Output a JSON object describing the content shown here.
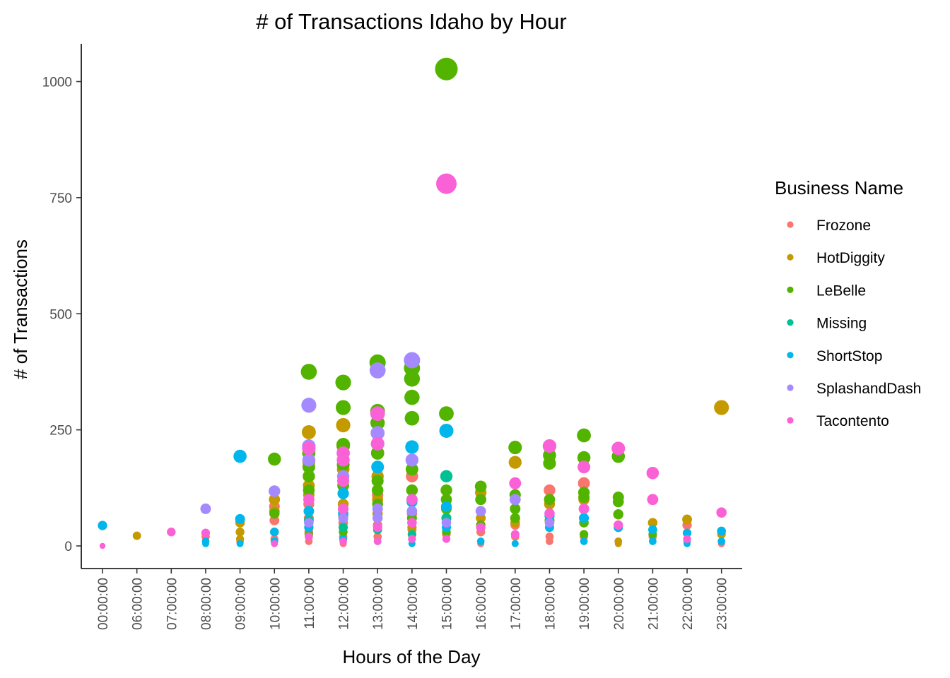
{
  "chart_data": {
    "type": "scatter",
    "title": "# of Transactions Idaho by Hour",
    "xlabel": "Hours of the Day",
    "ylabel": "# of Transactions",
    "categories": [
      "00:00:00",
      "06:00:00",
      "07:00:00",
      "08:00:00",
      "09:00:00",
      "10:00:00",
      "11:00:00",
      "12:00:00",
      "13:00:00",
      "14:00:00",
      "15:00:00",
      "16:00:00",
      "17:00:00",
      "18:00:00",
      "19:00:00",
      "20:00:00",
      "21:00:00",
      "22:00:00",
      "23:00:00"
    ],
    "y_ticks": [
      0,
      250,
      500,
      750,
      1000
    ],
    "ylim": [
      -48,
      1080
    ],
    "legend": {
      "title": "Business Name",
      "position": "right"
    },
    "grid": false,
    "series": [
      {
        "name": "Frozone",
        "color": "#F8766D",
        "points": [
          [
            "08:00:00",
            20
          ],
          [
            "09:00:00",
            10
          ],
          [
            "10:00:00",
            85
          ],
          [
            "10:00:00",
            55
          ],
          [
            "10:00:00",
            30
          ],
          [
            "10:00:00",
            15
          ],
          [
            "11:00:00",
            90
          ],
          [
            "11:00:00",
            60
          ],
          [
            "11:00:00",
            30
          ],
          [
            "11:00:00",
            10
          ],
          [
            "12:00:00",
            80
          ],
          [
            "12:00:00",
            50
          ],
          [
            "12:00:00",
            20
          ],
          [
            "12:00:00",
            5
          ],
          [
            "13:00:00",
            110
          ],
          [
            "13:00:00",
            45
          ],
          [
            "13:00:00",
            20
          ],
          [
            "14:00:00",
            150
          ],
          [
            "14:00:00",
            70
          ],
          [
            "14:00:00",
            35
          ],
          [
            "15:00:00",
            60
          ],
          [
            "15:00:00",
            25
          ],
          [
            "16:00:00",
            30
          ],
          [
            "16:00:00",
            5
          ],
          [
            "17:00:00",
            45
          ],
          [
            "17:00:00",
            20
          ],
          [
            "18:00:00",
            120
          ],
          [
            "18:00:00",
            20
          ],
          [
            "18:00:00",
            10
          ],
          [
            "19:00:00",
            135
          ],
          [
            "19:00:00",
            20
          ],
          [
            "20:00:00",
            40
          ],
          [
            "20:00:00",
            10
          ],
          [
            "21:00:00",
            20
          ],
          [
            "22:00:00",
            45
          ],
          [
            "22:00:00",
            10
          ],
          [
            "23:00:00",
            5
          ]
        ]
      },
      {
        "name": "HotDiggity",
        "color": "#C49A00",
        "points": [
          [
            "06:00:00",
            22
          ],
          [
            "09:00:00",
            50
          ],
          [
            "09:00:00",
            30
          ],
          [
            "09:00:00",
            15
          ],
          [
            "10:00:00",
            100
          ],
          [
            "10:00:00",
            75
          ],
          [
            "11:00:00",
            245
          ],
          [
            "11:00:00",
            180
          ],
          [
            "11:00:00",
            130
          ],
          [
            "11:00:00",
            110
          ],
          [
            "12:00:00",
            260
          ],
          [
            "12:00:00",
            215
          ],
          [
            "12:00:00",
            165
          ],
          [
            "12:00:00",
            90
          ],
          [
            "13:00:00",
            150
          ],
          [
            "13:00:00",
            100
          ],
          [
            "13:00:00",
            70
          ],
          [
            "14:00:00",
            40
          ],
          [
            "14:00:00",
            25
          ],
          [
            "15:00:00",
            80
          ],
          [
            "16:00:00",
            115
          ],
          [
            "16:00:00",
            60
          ],
          [
            "17:00:00",
            180
          ],
          [
            "17:00:00",
            50
          ],
          [
            "18:00:00",
            90
          ],
          [
            "18:00:00",
            55
          ],
          [
            "19:00:00",
            100
          ],
          [
            "19:00:00",
            25
          ],
          [
            "20:00:00",
            10
          ],
          [
            "20:00:00",
            5
          ],
          [
            "21:00:00",
            50
          ],
          [
            "22:00:00",
            57
          ],
          [
            "23:00:00",
            298
          ],
          [
            "23:00:00",
            25
          ]
        ]
      },
      {
        "name": "LeBelle",
        "color": "#53B400",
        "points": [
          [
            "10:00:00",
            187
          ],
          [
            "10:00:00",
            70
          ],
          [
            "11:00:00",
            375
          ],
          [
            "11:00:00",
            200
          ],
          [
            "11:00:00",
            170
          ],
          [
            "11:00:00",
            150
          ],
          [
            "11:00:00",
            120
          ],
          [
            "11:00:00",
            75
          ],
          [
            "11:00:00",
            40
          ],
          [
            "11:00:00",
            25
          ],
          [
            "12:00:00",
            352
          ],
          [
            "12:00:00",
            298
          ],
          [
            "12:00:00",
            218
          ],
          [
            "12:00:00",
            175
          ],
          [
            "12:00:00",
            130
          ],
          [
            "12:00:00",
            65
          ],
          [
            "12:00:00",
            30
          ],
          [
            "13:00:00",
            395
          ],
          [
            "13:00:00",
            290
          ],
          [
            "13:00:00",
            265
          ],
          [
            "13:00:00",
            200
          ],
          [
            "13:00:00",
            140
          ],
          [
            "13:00:00",
            120
          ],
          [
            "13:00:00",
            90
          ],
          [
            "13:00:00",
            60
          ],
          [
            "14:00:00",
            383
          ],
          [
            "14:00:00",
            360
          ],
          [
            "14:00:00",
            320
          ],
          [
            "14:00:00",
            275
          ],
          [
            "14:00:00",
            165
          ],
          [
            "14:00:00",
            120
          ],
          [
            "14:00:00",
            100
          ],
          [
            "14:00:00",
            60
          ],
          [
            "15:00:00",
            1027
          ],
          [
            "15:00:00",
            285
          ],
          [
            "15:00:00",
            120
          ],
          [
            "15:00:00",
            100
          ],
          [
            "15:00:00",
            80
          ],
          [
            "15:00:00",
            30
          ],
          [
            "16:00:00",
            128
          ],
          [
            "16:00:00",
            100
          ],
          [
            "16:00:00",
            45
          ],
          [
            "17:00:00",
            212
          ],
          [
            "17:00:00",
            110
          ],
          [
            "17:00:00",
            80
          ],
          [
            "17:00:00",
            60
          ],
          [
            "18:00:00",
            215
          ],
          [
            "18:00:00",
            195
          ],
          [
            "18:00:00",
            178
          ],
          [
            "18:00:00",
            100
          ],
          [
            "18:00:00",
            55
          ],
          [
            "19:00:00",
            238
          ],
          [
            "19:00:00",
            190
          ],
          [
            "19:00:00",
            115
          ],
          [
            "19:00:00",
            105
          ],
          [
            "19:00:00",
            50
          ],
          [
            "19:00:00",
            25
          ],
          [
            "20:00:00",
            193
          ],
          [
            "20:00:00",
            105
          ],
          [
            "20:00:00",
            95
          ],
          [
            "20:00:00",
            68
          ],
          [
            "21:00:00",
            25
          ]
        ]
      },
      {
        "name": "Missing",
        "color": "#00C094",
        "points": [
          [
            "11:00:00",
            55
          ],
          [
            "12:00:00",
            40
          ],
          [
            "13:00:00",
            35
          ],
          [
            "14:00:00",
            25
          ],
          [
            "15:00:00",
            150
          ],
          [
            "15:00:00",
            60
          ],
          [
            "16:00:00",
            40
          ]
        ]
      },
      {
        "name": "ShortStop",
        "color": "#00B6EB",
        "points": [
          [
            "00:00:00",
            44
          ],
          [
            "08:00:00",
            5
          ],
          [
            "08:00:00",
            10
          ],
          [
            "09:00:00",
            193
          ],
          [
            "09:00:00",
            58
          ],
          [
            "09:00:00",
            5
          ],
          [
            "10:00:00",
            30
          ],
          [
            "10:00:00",
            10
          ],
          [
            "11:00:00",
            75
          ],
          [
            "11:00:00",
            40
          ],
          [
            "12:00:00",
            113
          ],
          [
            "12:00:00",
            70
          ],
          [
            "12:00:00",
            15
          ],
          [
            "13:00:00",
            170
          ],
          [
            "13:00:00",
            60
          ],
          [
            "13:00:00",
            10
          ],
          [
            "14:00:00",
            213
          ],
          [
            "14:00:00",
            95
          ],
          [
            "14:00:00",
            5
          ],
          [
            "15:00:00",
            248
          ],
          [
            "15:00:00",
            85
          ],
          [
            "15:00:00",
            40
          ],
          [
            "16:00:00",
            10
          ],
          [
            "17:00:00",
            5
          ],
          [
            "18:00:00",
            65
          ],
          [
            "18:00:00",
            40
          ],
          [
            "19:00:00",
            60
          ],
          [
            "19:00:00",
            10
          ],
          [
            "20:00:00",
            40
          ],
          [
            "21:00:00",
            35
          ],
          [
            "21:00:00",
            10
          ],
          [
            "22:00:00",
            28
          ],
          [
            "22:00:00",
            5
          ],
          [
            "23:00:00",
            32
          ],
          [
            "23:00:00",
            10
          ]
        ]
      },
      {
        "name": "SplashandDash",
        "color": "#A58AFF",
        "points": [
          [
            "08:00:00",
            80
          ],
          [
            "10:00:00",
            118
          ],
          [
            "11:00:00",
            303
          ],
          [
            "11:00:00",
            215
          ],
          [
            "11:00:00",
            185
          ],
          [
            "11:00:00",
            50
          ],
          [
            "12:00:00",
            150
          ],
          [
            "12:00:00",
            60
          ],
          [
            "13:00:00",
            378
          ],
          [
            "13:00:00",
            243
          ],
          [
            "13:00:00",
            80
          ],
          [
            "13:00:00",
            60
          ],
          [
            "14:00:00",
            400
          ],
          [
            "14:00:00",
            185
          ],
          [
            "14:00:00",
            75
          ],
          [
            "15:00:00",
            50
          ],
          [
            "16:00:00",
            75
          ],
          [
            "17:00:00",
            100
          ],
          [
            "18:00:00",
            50
          ]
        ]
      },
      {
        "name": "Tacontento",
        "color": "#FB61D7",
        "points": [
          [
            "00:00:00",
            0
          ],
          [
            "07:00:00",
            30
          ],
          [
            "08:00:00",
            28
          ],
          [
            "10:00:00",
            5
          ],
          [
            "11:00:00",
            210
          ],
          [
            "11:00:00",
            100
          ],
          [
            "11:00:00",
            20
          ],
          [
            "12:00:00",
            200
          ],
          [
            "12:00:00",
            185
          ],
          [
            "12:00:00",
            140
          ],
          [
            "12:00:00",
            80
          ],
          [
            "12:00:00",
            10
          ],
          [
            "13:00:00",
            285
          ],
          [
            "13:00:00",
            220
          ],
          [
            "13:00:00",
            40
          ],
          [
            "13:00:00",
            10
          ],
          [
            "14:00:00",
            100
          ],
          [
            "14:00:00",
            50
          ],
          [
            "14:00:00",
            15
          ],
          [
            "15:00:00",
            780
          ],
          [
            "15:00:00",
            15
          ],
          [
            "16:00:00",
            40
          ],
          [
            "17:00:00",
            135
          ],
          [
            "17:00:00",
            25
          ],
          [
            "18:00:00",
            215
          ],
          [
            "18:00:00",
            70
          ],
          [
            "19:00:00",
            170
          ],
          [
            "19:00:00",
            80
          ],
          [
            "20:00:00",
            210
          ],
          [
            "20:00:00",
            45
          ],
          [
            "21:00:00",
            157
          ],
          [
            "21:00:00",
            100
          ],
          [
            "22:00:00",
            15
          ],
          [
            "23:00:00",
            72
          ]
        ]
      }
    ]
  }
}
